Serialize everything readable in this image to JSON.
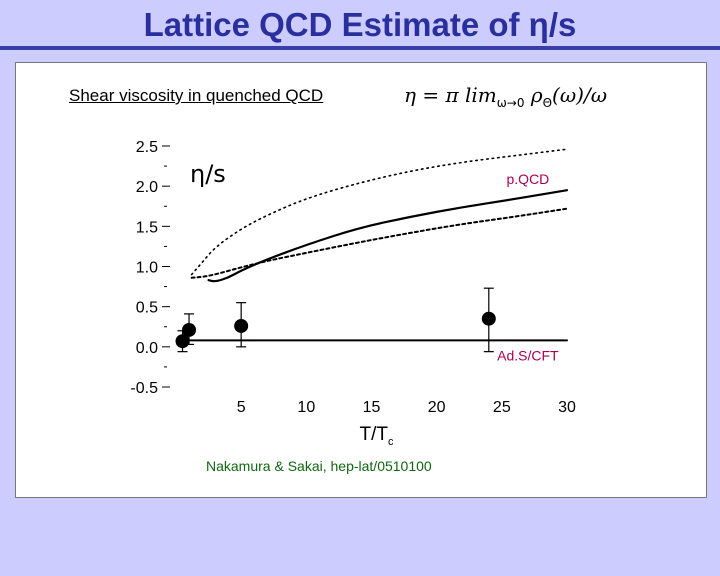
{
  "slide": {
    "title": "Lattice QCD Estimate of η/s",
    "subtitle": "Shear viscosity in quenched QCD",
    "formula": "η = π  lim",
    "formula_sub": "ω→0",
    "formula_rest": "ρ",
    "formula_sub2": "Θ",
    "formula_tail": "(ω)/ω",
    "credit": "Nakamura & Sakai,  hep-lat/0510100"
  },
  "colors": {
    "background": "#ccccff",
    "title": "#2a2f9e",
    "annotation_magenta": "#aa0055",
    "credit_green": "#116611"
  },
  "chart_data": {
    "type": "line",
    "ylabel": "η/s",
    "xlabel": "T/T",
    "xlabel_sub": "c",
    "xlim": [
      0,
      30
    ],
    "ylim": [
      -0.5,
      2.5
    ],
    "xticks": [
      5,
      10,
      15,
      20,
      25,
      30
    ],
    "yticks": [
      -0.5,
      0.0,
      0.5,
      1.0,
      1.5,
      2.0,
      2.5
    ],
    "ytick_labels": [
      "-0.5",
      "0.0",
      "0.5",
      "1.0",
      "1.5",
      "2.0",
      "2.5"
    ],
    "grid": false,
    "annotations": [
      {
        "text": "p.QCD",
        "x": 27,
        "y": 2.03,
        "color": "#aa0055"
      },
      {
        "text": "Ad.S/CFT",
        "x": 27,
        "y": -0.17,
        "color": "#aa0055"
      }
    ],
    "series": [
      {
        "style": "solid",
        "x": [
          2.5,
          3,
          4,
          5,
          7,
          10,
          14,
          18,
          22,
          26,
          30
        ],
        "y": [
          0.83,
          0.81,
          0.86,
          0.95,
          1.09,
          1.27,
          1.48,
          1.62,
          1.74,
          1.84,
          1.95
        ]
      },
      {
        "style": "dotted-upper",
        "x": [
          1.2,
          2,
          3,
          5,
          7,
          10,
          14,
          18,
          22,
          26,
          30
        ],
        "y": [
          0.9,
          1.05,
          1.24,
          1.47,
          1.64,
          1.85,
          2.04,
          2.19,
          2.3,
          2.38,
          2.46
        ]
      },
      {
        "style": "dotted-lower",
        "x": [
          1.2,
          2,
          3,
          5,
          7,
          10,
          14,
          18,
          22,
          26,
          30
        ],
        "y": [
          0.86,
          0.87,
          0.9,
          0.99,
          1.07,
          1.17,
          1.3,
          1.42,
          1.53,
          1.62,
          1.72
        ]
      },
      {
        "style": "solid-baseline",
        "x": [
          0.5,
          30
        ],
        "y": [
          0.08,
          0.08
        ]
      }
    ],
    "points": [
      {
        "x": 0.5,
        "y": 0.07,
        "err_low": 0.13,
        "err_high": 0.13
      },
      {
        "x": 1.0,
        "y": 0.21,
        "err_low": 0.18,
        "err_high": 0.2
      },
      {
        "x": 5.0,
        "y": 0.26,
        "err_low": 0.26,
        "err_high": 0.29
      },
      {
        "x": 24.0,
        "y": 0.35,
        "err_low": 0.41,
        "err_high": 0.38
      }
    ]
  }
}
